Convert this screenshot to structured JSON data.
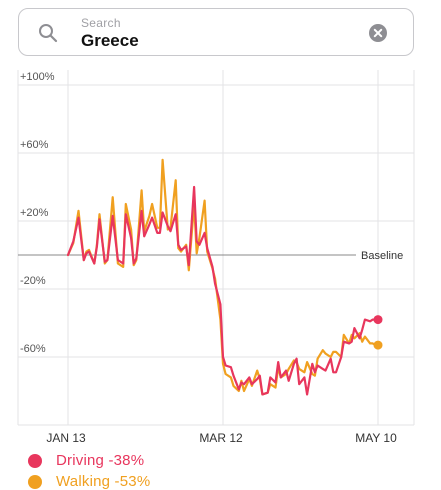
{
  "search": {
    "placeholder": "Search",
    "value": "Greece"
  },
  "icons": {
    "search": "search-icon",
    "clear": "clear-icon"
  },
  "colors": {
    "driving": "#e8365d",
    "walking": "#f0a020",
    "grid": "#e3e3e6",
    "baseline": "#888888",
    "label": "#555555"
  },
  "chart_data": {
    "type": "line",
    "title": "",
    "xlabel": "",
    "ylabel": "",
    "ylim": [
      -100,
      100
    ],
    "y_ticks": [
      {
        "value": 100,
        "label": "+100%"
      },
      {
        "value": 60,
        "label": "+60%"
      },
      {
        "value": 20,
        "label": "+20%"
      },
      {
        "value": -20,
        "label": "-20%"
      },
      {
        "value": -60,
        "label": "-60%"
      }
    ],
    "baseline": {
      "value": 0,
      "label": "Baseline"
    },
    "x_ticks": [
      {
        "day": 0,
        "label": "JAN 13"
      },
      {
        "day": 59,
        "label": "MAR 12"
      },
      {
        "day": 118,
        "label": "MAY 10"
      }
    ],
    "x_range": [
      "JAN 13",
      "MAY 10"
    ],
    "grid": true,
    "legend_position": "bottom-left",
    "series": [
      {
        "name": "Driving",
        "summary": "Driving -38%",
        "color": "#e8365d",
        "x": [
          0,
          2,
          4,
          6,
          7,
          8,
          10,
          11,
          12,
          14,
          15,
          17,
          18,
          19,
          21,
          22,
          24,
          25,
          26,
          28,
          29,
          31,
          32,
          34,
          35,
          36,
          38,
          39,
          41,
          42,
          43,
          45,
          46,
          48,
          49,
          50,
          52,
          53,
          55,
          56,
          58,
          59,
          60,
          62,
          63,
          65,
          66,
          67,
          69,
          70,
          72,
          73,
          74,
          76,
          77,
          79,
          80,
          81,
          83,
          84,
          86,
          87,
          88,
          90,
          91,
          93,
          94,
          95,
          97,
          98,
          100,
          101,
          102,
          104,
          105,
          107,
          108,
          109,
          111,
          112,
          113,
          115,
          116,
          117,
          118
        ],
        "y": [
          0,
          8,
          22,
          -3,
          1,
          2,
          -5,
          5,
          21,
          -4,
          -3,
          23,
          10,
          -3,
          -5,
          24,
          10,
          -5,
          -2,
          26,
          11,
          18,
          22,
          13,
          13,
          25,
          17,
          14,
          24,
          6,
          3,
          5,
          -6,
          40,
          8,
          6,
          13,
          4,
          -7,
          -17,
          -29,
          -60,
          -65,
          -66,
          -71,
          -79,
          -75,
          -76,
          -72,
          -76,
          -73,
          -71,
          -82,
          -81,
          -72,
          -75,
          -63,
          -72,
          -68,
          -74,
          -64,
          -61,
          -76,
          -72,
          -82,
          -64,
          -69,
          -65,
          -67,
          -68,
          -61,
          -69,
          -69,
          -60,
          -51,
          -52,
          -51,
          -43,
          -49,
          -44,
          -38,
          -39,
          -38,
          -38,
          -38
        ]
      },
      {
        "name": "Walking",
        "summary": "Walking -53%",
        "color": "#f0a020",
        "x": [
          0,
          2,
          4,
          6,
          7,
          8,
          10,
          11,
          12,
          14,
          15,
          17,
          18,
          19,
          21,
          22,
          24,
          25,
          26,
          28,
          29,
          31,
          32,
          34,
          35,
          36,
          38,
          39,
          41,
          42,
          43,
          45,
          46,
          48,
          49,
          50,
          52,
          53,
          55,
          56,
          58,
          59,
          60,
          62,
          63,
          65,
          66,
          67,
          69,
          70,
          72,
          73,
          74,
          76,
          77,
          79,
          80,
          81,
          83,
          84,
          86,
          87,
          88,
          90,
          91,
          93,
          94,
          95,
          97,
          98,
          100,
          101,
          102,
          104,
          105,
          107,
          108,
          109,
          111,
          112,
          113,
          115,
          116,
          117,
          118
        ],
        "y": [
          0,
          7,
          26,
          -3,
          2,
          3,
          -5,
          6,
          24,
          -5,
          -3,
          34,
          14,
          -5,
          -7,
          30,
          15,
          -6,
          -3,
          38,
          14,
          23,
          30,
          16,
          16,
          56,
          15,
          16,
          44,
          4,
          2,
          6,
          -9,
          30,
          1,
          10,
          32,
          2,
          -8,
          -14,
          -38,
          -64,
          -70,
          -72,
          -77,
          -80,
          -74,
          -80,
          -73,
          -77,
          -68,
          -73,
          -82,
          -81,
          -76,
          -78,
          -66,
          -72,
          -70,
          -67,
          -62,
          -63,
          -67,
          -69,
          -63,
          -70,
          -71,
          -61,
          -56,
          -58,
          -60,
          -57,
          -57,
          -60,
          -47,
          -52,
          -47,
          -49,
          -46,
          -51,
          -48,
          -52,
          -52,
          -53,
          -53
        ]
      }
    ]
  }
}
